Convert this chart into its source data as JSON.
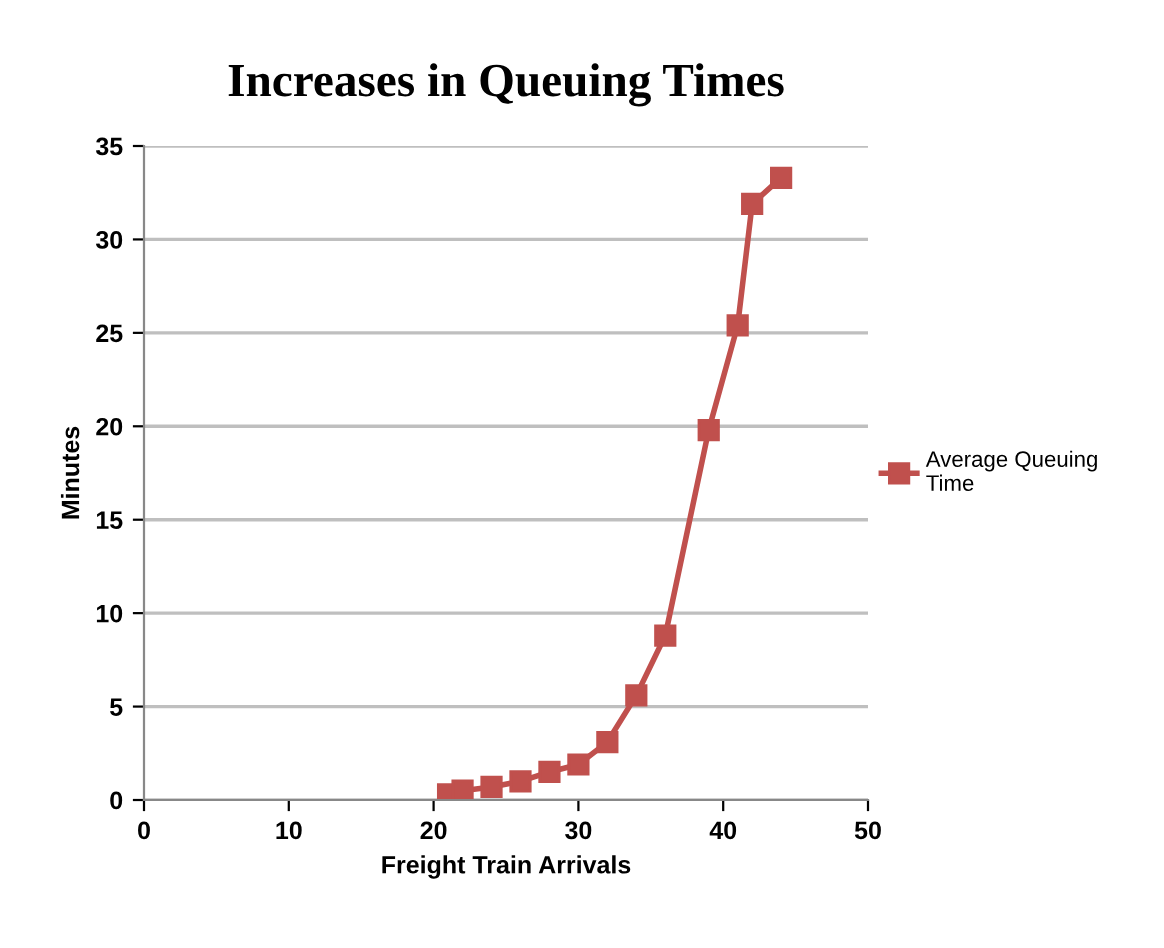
{
  "chart_data": {
    "type": "line",
    "title": "Increases in Queuing Times",
    "xlabel": "Freight Train Arrivals",
    "ylabel": "Minutes",
    "series": [
      {
        "name": "Average Queuing Time",
        "color": "#c0504d",
        "x": [
          21,
          22,
          24,
          26,
          28,
          30,
          32,
          34,
          36,
          39,
          41,
          42,
          44
        ],
        "values": [
          0.3,
          0.5,
          0.7,
          1.0,
          1.5,
          1.9,
          3.1,
          5.6,
          8.8,
          19.8,
          25.4,
          31.9,
          33.3
        ]
      }
    ],
    "xlim": [
      0,
      50
    ],
    "xticks": [
      0,
      10,
      20,
      30,
      40,
      50
    ],
    "ylim": [
      0,
      35
    ],
    "yticks": [
      0,
      5,
      10,
      15,
      20,
      25,
      30,
      35
    ],
    "grid": "y",
    "legend": "right",
    "marker": "square",
    "line_style": "solid"
  }
}
